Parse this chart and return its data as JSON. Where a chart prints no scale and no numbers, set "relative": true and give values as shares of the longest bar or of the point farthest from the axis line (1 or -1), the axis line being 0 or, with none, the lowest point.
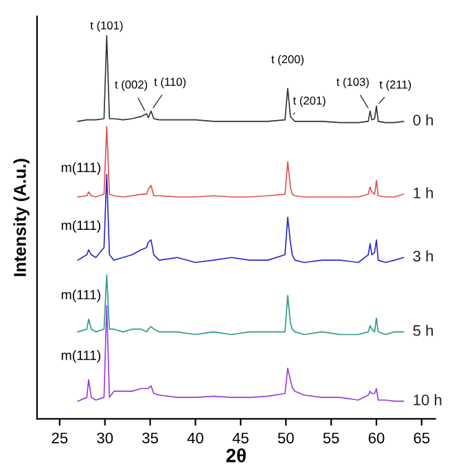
{
  "chart_data": {
    "type": "line",
    "relative": true,
    "xlabel": "2θ",
    "ylabel": "Intensity (A.u.)",
    "xlim": [
      22.5,
      66.5
    ],
    "xticks": [
      25,
      30,
      35,
      40,
      45,
      50,
      55,
      60,
      65
    ],
    "grid": false,
    "marker": "none",
    "line_style": "solid",
    "x": [
      27,
      28,
      28.2,
      28.5,
      29,
      29.9,
      30.2,
      30.5,
      31,
      32,
      33,
      34,
      34.6,
      34.8,
      35.1,
      35.4,
      36,
      38,
      40,
      42,
      44,
      46,
      48,
      49.9,
      50.2,
      50.5,
      50.7,
      51,
      52,
      54,
      56,
      58,
      59.1,
      59.3,
      59.5,
      59.8,
      60,
      60.2,
      61,
      62,
      63
    ],
    "series": [
      {
        "name": "0 h",
        "color": "#333333",
        "values": [
          0.776,
          0.78,
          0.78,
          0.78,
          0.78,
          0.783,
          1.0,
          0.783,
          0.783,
          0.78,
          0.783,
          0.789,
          0.796,
          0.786,
          0.803,
          0.783,
          0.78,
          0.78,
          0.78,
          0.776,
          0.776,
          0.776,
          0.776,
          0.78,
          0.862,
          0.789,
          0.783,
          0.776,
          0.776,
          0.776,
          0.773,
          0.773,
          0.776,
          0.803,
          0.78,
          0.783,
          0.816,
          0.776,
          0.773,
          0.773,
          0.776
        ]
      },
      {
        "name": "1 h",
        "color": "#e05050",
        "values": [
          0.579,
          0.582,
          0.592,
          0.582,
          0.579,
          0.586,
          0.763,
          0.586,
          0.582,
          0.579,
          0.582,
          0.586,
          0.586,
          0.599,
          0.609,
          0.582,
          0.582,
          0.579,
          0.579,
          0.582,
          0.579,
          0.579,
          0.582,
          0.586,
          0.671,
          0.605,
          0.586,
          0.582,
          0.579,
          0.579,
          0.579,
          0.579,
          0.586,
          0.605,
          0.592,
          0.586,
          0.622,
          0.582,
          0.579,
          0.579,
          0.586
        ]
      },
      {
        "name": "3 h",
        "color": "#2828c8",
        "values": [
          0.414,
          0.428,
          0.441,
          0.428,
          0.421,
          0.447,
          0.638,
          0.428,
          0.414,
          0.421,
          0.428,
          0.441,
          0.447,
          0.461,
          0.467,
          0.428,
          0.414,
          0.421,
          0.408,
          0.414,
          0.421,
          0.414,
          0.414,
          0.428,
          0.526,
          0.461,
          0.428,
          0.414,
          0.408,
          0.414,
          0.414,
          0.408,
          0.428,
          0.457,
          0.428,
          0.434,
          0.467,
          0.414,
          0.408,
          0.414,
          0.421
        ]
      },
      {
        "name": "5 h",
        "color": "#2a9a8a",
        "values": [
          0.227,
          0.234,
          0.26,
          0.234,
          0.227,
          0.234,
          0.375,
          0.234,
          0.234,
          0.227,
          0.234,
          0.234,
          0.227,
          0.234,
          0.241,
          0.234,
          0.227,
          0.227,
          0.22,
          0.227,
          0.22,
          0.227,
          0.227,
          0.227,
          0.322,
          0.25,
          0.234,
          0.227,
          0.22,
          0.227,
          0.22,
          0.22,
          0.227,
          0.243,
          0.234,
          0.227,
          0.263,
          0.227,
          0.22,
          0.227,
          0.227
        ]
      },
      {
        "name": "10 h",
        "color": "#9a3ad8",
        "values": [
          0.046,
          0.056,
          0.102,
          0.056,
          0.049,
          0.056,
          0.296,
          0.056,
          0.072,
          0.072,
          0.072,
          0.079,
          0.079,
          0.079,
          0.086,
          0.066,
          0.062,
          0.056,
          0.056,
          0.059,
          0.056,
          0.056,
          0.059,
          0.066,
          0.132,
          0.102,
          0.082,
          0.072,
          0.062,
          0.056,
          0.056,
          0.049,
          0.062,
          0.072,
          0.066,
          0.066,
          0.079,
          0.049,
          0.049,
          0.046,
          0.046
        ]
      }
    ],
    "annotations": [
      {
        "text": "t (101)",
        "x": 30.2,
        "y": 1.0
      },
      {
        "text": "t (002)",
        "x": 34.6,
        "y": 0.796
      },
      {
        "text": "t (110)",
        "x": 35.1,
        "y": 0.803
      },
      {
        "text": "t (200)",
        "x": 50.2,
        "y": 0.862
      },
      {
        "text": "t (201)",
        "x": 50.5,
        "y": 0.789
      },
      {
        "text": "t (103)",
        "x": 59.3,
        "y": 0.803
      },
      {
        "text": "t (211)",
        "x": 60,
        "y": 0.816
      },
      {
        "text": "m(111)",
        "x": 28.2,
        "y": 0.592
      },
      {
        "text": "m(111)",
        "x": 28.2,
        "y": 0.441
      },
      {
        "text": "m(111)",
        "x": 28.2,
        "y": 0.26
      },
      {
        "text": "m(111)",
        "x": 28.2,
        "y": 0.102
      }
    ]
  }
}
